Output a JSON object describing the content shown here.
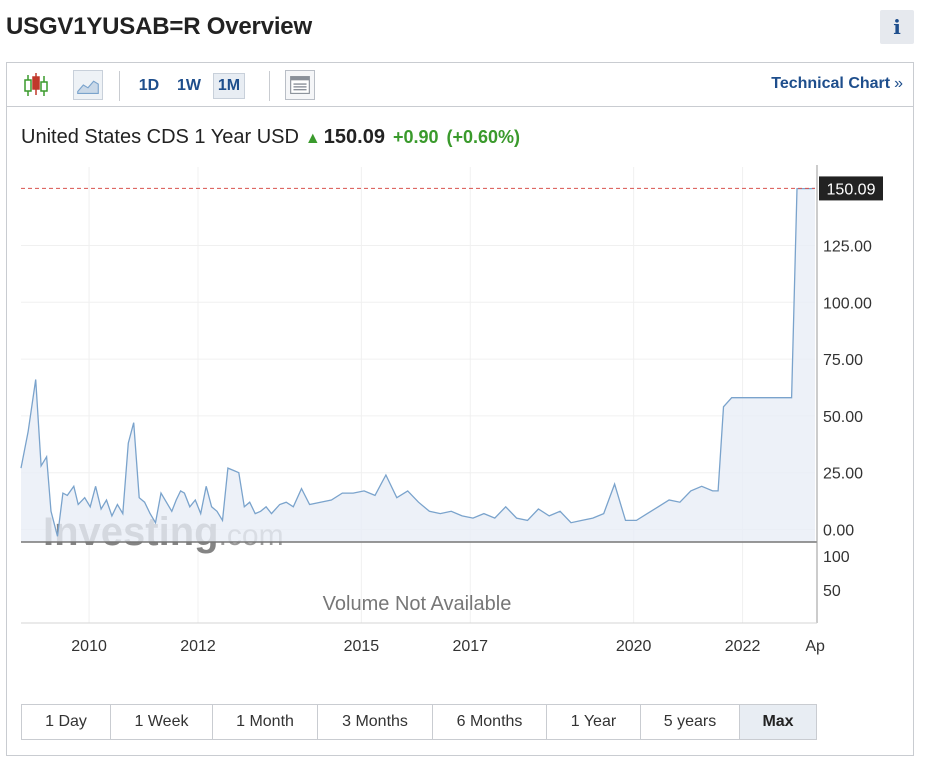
{
  "page": {
    "title": "USGV1YUSAB=R Overview",
    "info_icon": "i"
  },
  "toolbar": {
    "candlestick_icon": "candlestick-chart-icon",
    "area_icon": "area-chart-icon",
    "intervals": [
      "1D",
      "1W",
      "1M"
    ],
    "active_interval": "1M",
    "table_icon": "table-view-icon",
    "technical_chart_label": "Technical Chart",
    "technical_chart_chevron": "»"
  },
  "quote": {
    "name": "United States CDS 1 Year USD",
    "arrow": "▲",
    "price": "150.09",
    "change": "+0.90",
    "change_pct": "(+0.60%)",
    "up_color": "#3a9a2c"
  },
  "chart_data": {
    "type": "area",
    "x_tick_labels": [
      "2010",
      "2012",
      "2015",
      "2017",
      "2020",
      "2022",
      "Ap"
    ],
    "x_tick_years": [
      2010,
      2012,
      2015,
      2017,
      2020,
      2022,
      2023.3
    ],
    "xlim": [
      2008.75,
      2023.33
    ],
    "y_tick_labels": [
      "125.00",
      "100.00",
      "75.00",
      "50.00",
      "25.00",
      "0.00"
    ],
    "y_ticks": [
      125,
      100,
      75,
      50,
      25,
      0
    ],
    "ylim": [
      -5.5,
      156
    ],
    "last_value_label": "150.09",
    "last_value": 150.09,
    "volume_text": "Volume Not Available",
    "volume_tick_labels": [
      "100",
      "50"
    ],
    "watermark_bold": "Investing",
    "watermark_light": ".com",
    "line_color": "#7aa3cc",
    "fill_color": "#e8eef6",
    "series": [
      {
        "x": [
          2008.75,
          2008.88,
          2009.02,
          2009.12,
          2009.22,
          2009.3,
          2009.42,
          2009.52,
          2009.6,
          2009.72,
          2009.8,
          2009.92,
          2010.02,
          2010.12,
          2010.22,
          2010.32,
          2010.42,
          2010.52,
          2010.62,
          2010.72,
          2010.82,
          2010.92,
          2011.02,
          2011.12,
          2011.22,
          2011.32,
          2011.42,
          2011.52,
          2011.6,
          2011.68,
          2011.75,
          2011.85,
          2011.95,
          2012.05,
          2012.15,
          2012.25,
          2012.35,
          2012.45,
          2012.55,
          2012.65,
          2012.75,
          2012.85,
          2012.95,
          2013.05,
          2013.15,
          2013.25,
          2013.35,
          2013.5,
          2013.62,
          2013.75,
          2013.9,
          2014.05,
          2014.25,
          2014.45,
          2014.65,
          2014.85,
          2015.05,
          2015.25,
          2015.45,
          2015.65,
          2015.85,
          2016.05,
          2016.25,
          2016.45,
          2016.65,
          2016.85,
          2017.05,
          2017.25,
          2017.45,
          2017.65,
          2017.85,
          2018.05,
          2018.25,
          2018.45,
          2018.65,
          2018.85,
          2019.05,
          2019.25,
          2019.45,
          2019.65,
          2019.85,
          2020.05,
          2020.25,
          2020.45,
          2020.65,
          2020.85,
          2021.05,
          2021.25,
          2021.45,
          2021.55,
          2021.65,
          2021.8,
          2021.95,
          2022.1,
          2022.25,
          2022.4,
          2022.55,
          2022.7,
          2022.8,
          2022.9,
          2023.0,
          2023.1,
          2023.18,
          2023.25,
          2023.33
        ],
        "y": [
          27,
          43,
          66,
          28,
          32,
          8,
          -3,
          16,
          15,
          19,
          11,
          14,
          10,
          19,
          9,
          13,
          6,
          11,
          7,
          38,
          47,
          14,
          12,
          7,
          3,
          16,
          12,
          8,
          13,
          17,
          16,
          10,
          13,
          7,
          19,
          10,
          8,
          4,
          27,
          26,
          25,
          10,
          12,
          7,
          8,
          10,
          7,
          11,
          12,
          10,
          18,
          11,
          12,
          13,
          16,
          16,
          17,
          15,
          24,
          14,
          17,
          12,
          8,
          7,
          8,
          6,
          5,
          7,
          5,
          10,
          5,
          4,
          9,
          6,
          8,
          3,
          4,
          5,
          7,
          20,
          4,
          4,
          7,
          10,
          13,
          12,
          17,
          19,
          17,
          17,
          54,
          58,
          58,
          58,
          58,
          58,
          58,
          58,
          58,
          58,
          150,
          150,
          150,
          150,
          150.09
        ]
      }
    ]
  },
  "ranges": [
    "1 Day",
    "1 Week",
    "1 Month",
    "3 Months",
    "6 Months",
    "1 Year",
    "5 years",
    "Max"
  ],
  "active_range": "Max"
}
